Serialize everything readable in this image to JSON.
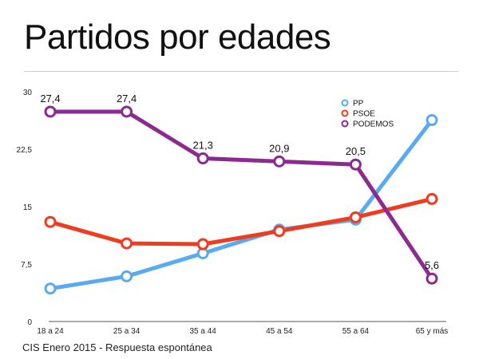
{
  "header": {
    "title": "Partidos por edades"
  },
  "footer": {
    "source": "CIS Enero 2015 - Respuesta espontánea"
  },
  "chart_data": {
    "type": "line",
    "title": "Partidos por edades",
    "xlabel": "",
    "ylabel": "",
    "categories": [
      "18 a 24",
      "25 a 34",
      "35 a 44",
      "45 a 54",
      "55 a 64",
      "65 y más"
    ],
    "ylim": [
      0,
      30
    ],
    "yticks": [
      0,
      7.5,
      15,
      22.5,
      30
    ],
    "ytick_labels": [
      "0",
      "7,5",
      "15",
      "22,5",
      "30"
    ],
    "grid": false,
    "legend_position": "top-right",
    "series": [
      {
        "name": "PP",
        "color": "#5aaaf0",
        "values": [
          4.3,
          5.9,
          8.9,
          12.0,
          13.3,
          26.3
        ]
      },
      {
        "name": "PSOE",
        "color": "#f03c1e",
        "values": [
          13.0,
          10.2,
          10.1,
          11.8,
          13.6,
          16.0
        ]
      },
      {
        "name": "PODEMOS",
        "color": "#8c2a91",
        "values": [
          27.4,
          27.4,
          21.3,
          20.9,
          20.5,
          5.6
        ],
        "data_labels": [
          "27,4",
          "27,4",
          "21,3",
          "20,9",
          "20,5",
          "5,6"
        ]
      }
    ]
  }
}
